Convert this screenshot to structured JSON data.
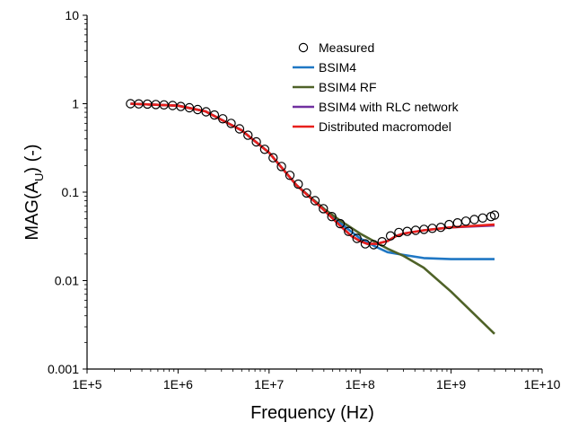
{
  "chart_data": {
    "type": "line",
    "title": "",
    "xlabel": "Frequency (Hz)",
    "ylabel_main": "MAG(A",
    "ylabel_sub": "U",
    "ylabel_tail": ") (-)",
    "xscale": "log",
    "yscale": "log",
    "xlim": [
      100000,
      10000000000
    ],
    "ylim": [
      0.001,
      10
    ],
    "xticks": [
      "1E+5",
      "1E+6",
      "1E+7",
      "1E+8",
      "1E+9",
      "1E+10"
    ],
    "yticks": [
      "0.001",
      "0.01",
      "0.1",
      "1",
      "10"
    ],
    "grid": false,
    "legend_position": "top-right",
    "series": [
      {
        "name": "Measured",
        "style": "markers",
        "marker": "open-circle",
        "color": "#000000",
        "x": [
          300000,
          370000,
          460000,
          570000,
          700000,
          870000,
          1070000,
          1330000,
          1640000,
          2030000,
          2510000,
          3100000,
          3830000,
          4740000,
          5860000,
          7240000,
          8950000,
          11070000,
          13690000,
          16920000,
          20920000,
          25860000,
          31970000,
          39520000,
          48860000,
          60400000,
          74680000,
          92330000,
          114100000,
          141100000,
          174400000,
          215700000,
          266600000,
          329600000,
          407500000,
          503800000,
          622800000,
          769900000,
          951800000,
          1177000000,
          1455000000,
          1799000000,
          2224000000,
          2749000000,
          3000000000
        ],
        "y": [
          1.0,
          0.995,
          0.99,
          0.98,
          0.97,
          0.955,
          0.93,
          0.9,
          0.86,
          0.81,
          0.745,
          0.675,
          0.6,
          0.52,
          0.44,
          0.37,
          0.305,
          0.245,
          0.195,
          0.155,
          0.123,
          0.098,
          0.08,
          0.065,
          0.053,
          0.044,
          0.036,
          0.03,
          0.026,
          0.0255,
          0.0275,
          0.032,
          0.035,
          0.036,
          0.037,
          0.038,
          0.039,
          0.04,
          0.043,
          0.045,
          0.047,
          0.049,
          0.051,
          0.053,
          0.055
        ]
      },
      {
        "name": "BSIM4",
        "style": "line",
        "color": "#1f77c4",
        "x": [
          300000,
          1000000,
          2000000,
          5000000,
          10000000,
          20000000,
          40000000,
          60000000,
          100000000,
          150000000,
          200000000,
          300000000,
          500000000,
          1000000000,
          3000000000
        ],
        "y": [
          1.0,
          0.95,
          0.82,
          0.5,
          0.28,
          0.12,
          0.065,
          0.045,
          0.03,
          0.024,
          0.021,
          0.0195,
          0.018,
          0.0175,
          0.0175
        ]
      },
      {
        "name": "BSIM4 RF",
        "style": "line",
        "color": "#4f6228",
        "x": [
          300000,
          1000000,
          2000000,
          5000000,
          10000000,
          20000000,
          40000000,
          60000000,
          100000000,
          150000000,
          200000000,
          300000000,
          500000000,
          1000000000,
          3000000000
        ],
        "y": [
          1.0,
          0.95,
          0.82,
          0.5,
          0.28,
          0.12,
          0.065,
          0.048,
          0.034,
          0.027,
          0.023,
          0.019,
          0.014,
          0.0075,
          0.0025
        ]
      },
      {
        "name": "BSIM4 with RLC network",
        "style": "line",
        "color": "#7030a0",
        "x": [
          300000,
          1000000,
          2000000,
          5000000,
          10000000,
          20000000,
          40000000,
          60000000,
          80000000,
          100000000,
          120000000,
          150000000,
          200000000,
          250000000,
          300000000,
          500000000,
          1000000000,
          3000000000
        ],
        "y": [
          1.0,
          0.95,
          0.82,
          0.5,
          0.28,
          0.12,
          0.063,
          0.042,
          0.032,
          0.028,
          0.026,
          0.026,
          0.028,
          0.032,
          0.034,
          0.037,
          0.04,
          0.042
        ]
      },
      {
        "name": "Distributed macromodel",
        "style": "line",
        "color": "#e8201c",
        "x": [
          300000,
          1000000,
          2000000,
          5000000,
          10000000,
          20000000,
          40000000,
          60000000,
          80000000,
          100000000,
          120000000,
          150000000,
          200000000,
          250000000,
          300000000,
          500000000,
          1000000000,
          3000000000
        ],
        "y": [
          1.0,
          0.95,
          0.82,
          0.5,
          0.28,
          0.12,
          0.063,
          0.042,
          0.032,
          0.028,
          0.026,
          0.026,
          0.028,
          0.032,
          0.034,
          0.037,
          0.04,
          0.043
        ]
      }
    ]
  }
}
